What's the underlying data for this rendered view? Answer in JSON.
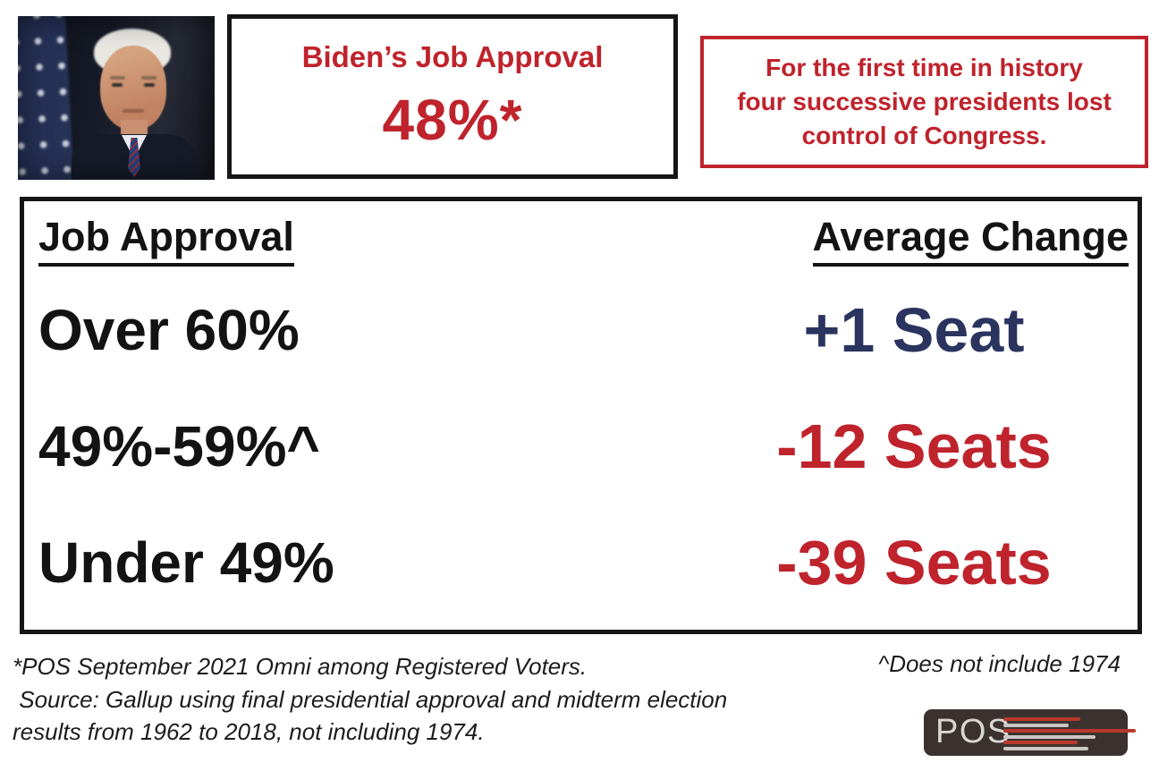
{
  "chart_data": {
    "type": "table",
    "title": "Biden’s Job Approval 48%*",
    "columns": [
      "Job Approval",
      "Average Change"
    ],
    "rows": [
      {
        "job_approval": "Over 60%",
        "average_change_seats": 1,
        "average_change_label": "+1 Seat"
      },
      {
        "job_approval": "49%-59%^",
        "average_change_seats": -12,
        "average_change_label": "-12 Seats"
      },
      {
        "job_approval": "Under 49%",
        "average_change_seats": -39,
        "average_change_label": "-39 Seats"
      }
    ],
    "annotations": [
      "For the first time in history four successive presidents lost control of Congress.",
      "*POS September 2021 Omni among Registered Voters.",
      "Source: Gallup using final presidential approval and midterm election results from 1962 to 2018, not including 1974.",
      "^Does not include 1974"
    ]
  },
  "approval_box": {
    "title": "Biden’s Job Approval",
    "value": "48%*"
  },
  "history_box": {
    "line1": "For the first time in history",
    "line2": "four successive presidents lost",
    "line3": "control of Congress."
  },
  "table": {
    "header_left": "Job Approval",
    "header_right": "Average Change",
    "rows": [
      {
        "approval": "Over 60%",
        "change": "+1 Seat",
        "change_color": "navy"
      },
      {
        "approval": "49%-59%^",
        "change": "-12 Seats",
        "change_color": "red"
      },
      {
        "approval": "Under 49%",
        "change": "-39 Seats",
        "change_color": "red"
      }
    ]
  },
  "footnotes": {
    "left_line1": "*POS September 2021 Omni among Registered Voters.",
    "left_line2": " Source: Gallup using final presidential approval and midterm election",
    "left_line3": "results from 1962 to 2018, not including 1974.",
    "right": "^Does not include 1974"
  },
  "logo": {
    "text": "POS"
  },
  "photo": {
    "subject": "Joe Biden portrait with US flag background"
  },
  "colors": {
    "accent_red": "#bf232c",
    "accent_navy": "#2b345f",
    "text_black": "#131313",
    "logo_background": "#3b322f",
    "logo_line_red": "#b8392c",
    "logo_line_gray": "#cbc7c4",
    "logo_text": "#d9d6d3"
  }
}
